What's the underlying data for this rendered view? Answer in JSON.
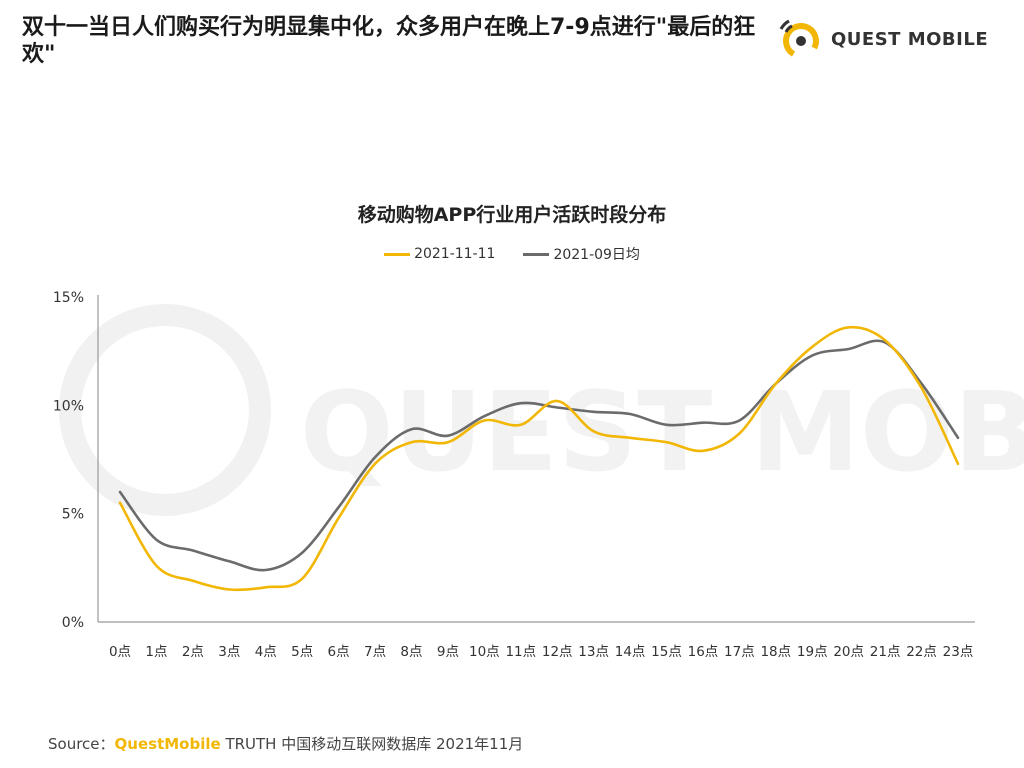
{
  "headline": "双十一当日人们购买行为明显集中化，众多用户在晚上7-9点进行\"最后的狂欢\"",
  "logo": {
    "text": "QUEST MOBILE",
    "icon": "questmobile-logo-icon"
  },
  "source": {
    "prefix": "Source：",
    "brand": "QuestMobile",
    "rest": " TRUTH 中国移动互联网数据库 2021年11月"
  },
  "watermark": "QUEST MOBILE",
  "chart_data": {
    "type": "line",
    "title": "移动购物APP行业用户活跃时段分布",
    "categories": [
      "0点",
      "1点",
      "2点",
      "3点",
      "4点",
      "5点",
      "6点",
      "7点",
      "8点",
      "9点",
      "10点",
      "11点",
      "12点",
      "13点",
      "14点",
      "15点",
      "16点",
      "17点",
      "18点",
      "19点",
      "20点",
      "21点",
      "22点",
      "23点"
    ],
    "series": [
      {
        "name": "2021-11-11",
        "color": "#f2b705",
        "values": [
          5.5,
          2.6,
          1.9,
          1.5,
          1.6,
          2.0,
          4.8,
          7.3,
          8.3,
          8.3,
          9.3,
          9.1,
          10.2,
          8.8,
          8.5,
          8.3,
          7.9,
          8.7,
          11.0,
          12.7,
          13.6,
          13.0,
          10.8,
          7.3
        ]
      },
      {
        "name": "2021-09日均",
        "color": "#6b6b6b",
        "values": [
          6.0,
          3.8,
          3.3,
          2.8,
          2.4,
          3.2,
          5.3,
          7.6,
          8.9,
          8.6,
          9.5,
          10.1,
          9.9,
          9.7,
          9.6,
          9.1,
          9.2,
          9.3,
          11.0,
          12.3,
          12.6,
          12.9,
          11.0,
          8.5
        ]
      }
    ],
    "yticks": [
      "0%",
      "5%",
      "10%",
      "15%"
    ],
    "ylim": [
      0,
      15
    ],
    "grid": false,
    "legend_position": "top-center"
  }
}
